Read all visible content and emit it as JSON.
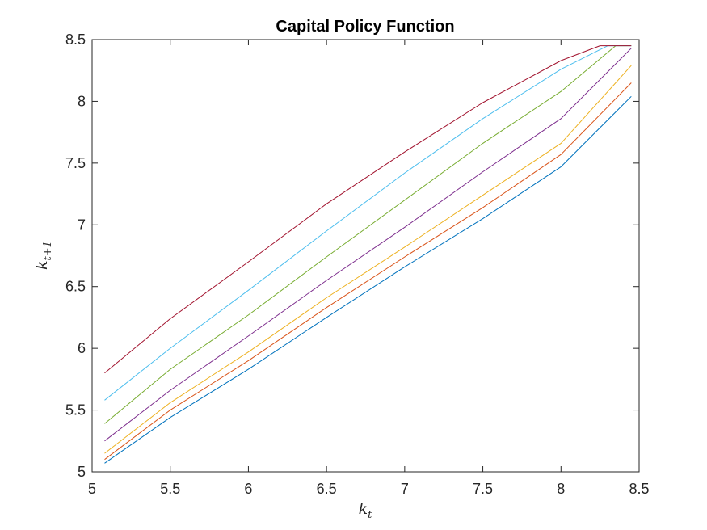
{
  "chart_data": {
    "type": "line",
    "title": "Capital Policy Function",
    "xlabel": {
      "base": "k",
      "sub": "t"
    },
    "ylabel": {
      "base": "k",
      "sub": "t+1"
    },
    "xlim": [
      5,
      8.5
    ],
    "ylim": [
      5,
      8.5
    ],
    "xticks": [
      "5",
      "5.5",
      "6",
      "6.5",
      "7",
      "7.5",
      "8",
      "8.5"
    ],
    "yticks": [
      "5",
      "5.5",
      "6",
      "6.5",
      "7",
      "7.5",
      "8",
      "8.5"
    ],
    "grid": false,
    "legend": "none",
    "series": [
      {
        "color": "#0072BD",
        "points": [
          [
            5.08,
            5.07
          ],
          [
            5.5,
            5.44
          ],
          [
            6.0,
            5.83
          ],
          [
            6.5,
            6.25
          ],
          [
            7.0,
            6.66
          ],
          [
            7.5,
            7.05
          ],
          [
            8.0,
            7.47
          ],
          [
            8.45,
            8.04
          ]
        ]
      },
      {
        "color": "#D95319",
        "points": [
          [
            5.08,
            5.1
          ],
          [
            5.5,
            5.5
          ],
          [
            6.0,
            5.9
          ],
          [
            6.5,
            6.33
          ],
          [
            7.0,
            6.74
          ],
          [
            7.5,
            7.14
          ],
          [
            8.0,
            7.57
          ],
          [
            8.45,
            8.15
          ]
        ]
      },
      {
        "color": "#EDB120",
        "points": [
          [
            5.08,
            5.15
          ],
          [
            5.5,
            5.56
          ],
          [
            6.0,
            5.97
          ],
          [
            6.5,
            6.41
          ],
          [
            7.0,
            6.82
          ],
          [
            7.5,
            7.24
          ],
          [
            8.0,
            7.66
          ],
          [
            8.45,
            8.29
          ]
        ]
      },
      {
        "color": "#7E2F8E",
        "points": [
          [
            5.08,
            5.25
          ],
          [
            5.5,
            5.66
          ],
          [
            6.0,
            6.1
          ],
          [
            6.5,
            6.55
          ],
          [
            7.0,
            6.98
          ],
          [
            7.5,
            7.43
          ],
          [
            8.0,
            7.86
          ],
          [
            8.45,
            8.43
          ]
        ]
      },
      {
        "color": "#77AC30",
        "points": [
          [
            5.08,
            5.39
          ],
          [
            5.5,
            5.83
          ],
          [
            6.0,
            6.27
          ],
          [
            6.5,
            6.74
          ],
          [
            7.0,
            7.2
          ],
          [
            7.5,
            7.66
          ],
          [
            8.0,
            8.08
          ],
          [
            8.35,
            8.45
          ],
          [
            8.45,
            8.45
          ]
        ]
      },
      {
        "color": "#4DBEEE",
        "points": [
          [
            5.08,
            5.58
          ],
          [
            5.5,
            6.0
          ],
          [
            6.0,
            6.47
          ],
          [
            6.5,
            6.95
          ],
          [
            7.0,
            7.42
          ],
          [
            7.5,
            7.86
          ],
          [
            8.0,
            8.26
          ],
          [
            8.3,
            8.45
          ],
          [
            8.45,
            8.45
          ]
        ]
      },
      {
        "color": "#A2142F",
        "points": [
          [
            5.08,
            5.8
          ],
          [
            5.5,
            6.24
          ],
          [
            6.0,
            6.7
          ],
          [
            6.5,
            7.17
          ],
          [
            7.0,
            7.59
          ],
          [
            7.5,
            7.99
          ],
          [
            8.0,
            8.33
          ],
          [
            8.25,
            8.45
          ],
          [
            8.45,
            8.45
          ]
        ]
      }
    ]
  }
}
